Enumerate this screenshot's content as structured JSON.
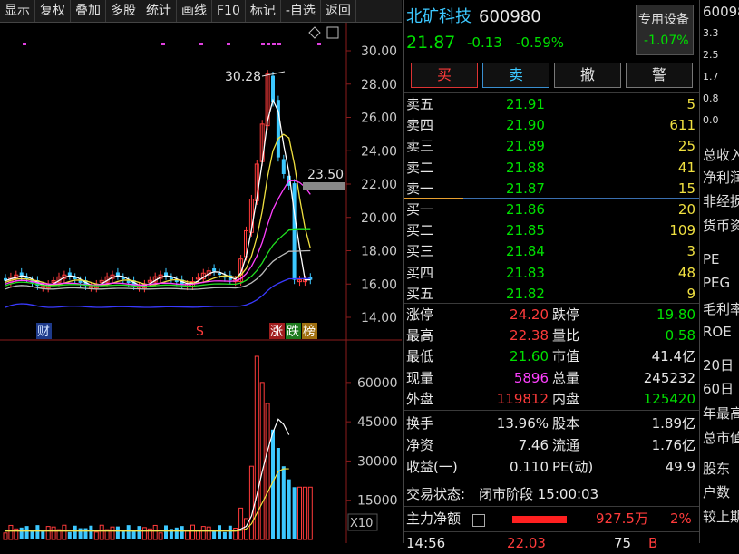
{
  "toolbar": [
    "显示",
    "复权",
    "叠加",
    "多股",
    "统计",
    "画线",
    "F10",
    "标记",
    "-自选",
    "返回"
  ],
  "chart": {
    "price_axis": [
      "30.00",
      "28.00",
      "26.00",
      "24.00",
      "22.00",
      "20.00",
      "18.00",
      "16.00",
      "14.00"
    ],
    "high_label": "30.28",
    "current_label": "23.50",
    "markers": [
      "财",
      "S",
      "涨",
      "跌",
      "榜"
    ],
    "volume_axis": [
      "60000",
      "45000",
      "30000",
      "15000"
    ],
    "zoom_label": "X10"
  },
  "stock": {
    "name": "北矿科技",
    "code": "600980",
    "price": "21.87",
    "change": "-0.13",
    "change_pct": "-0.59%",
    "sector": "专用设备",
    "sector_pct": "-1.07%"
  },
  "buttons": {
    "buy": "买",
    "sell": "卖",
    "cancel": "撤",
    "alert": "警"
  },
  "asks": [
    {
      "label": "卖五",
      "price": "21.91",
      "vol": "5"
    },
    {
      "label": "卖四",
      "price": "21.90",
      "vol": "611"
    },
    {
      "label": "卖三",
      "price": "21.89",
      "vol": "25"
    },
    {
      "label": "卖二",
      "price": "21.88",
      "vol": "41"
    },
    {
      "label": "卖一",
      "price": "21.87",
      "vol": "15"
    }
  ],
  "bids": [
    {
      "label": "买一",
      "price": "21.86",
      "vol": "20"
    },
    {
      "label": "买二",
      "price": "21.85",
      "vol": "109"
    },
    {
      "label": "买三",
      "price": "21.84",
      "vol": "3"
    },
    {
      "label": "买四",
      "price": "21.83",
      "vol": "48"
    },
    {
      "label": "买五",
      "price": "21.82",
      "vol": "9"
    }
  ],
  "stats": [
    {
      "l1": "涨停",
      "v1": "24.20",
      "c1": "red",
      "l2": "跌停",
      "v2": "19.80",
      "c2": "green"
    },
    {
      "l1": "最高",
      "v1": "22.38",
      "c1": "red",
      "l2": "量比",
      "v2": "0.58",
      "c2": "green"
    },
    {
      "l1": "最低",
      "v1": "21.60",
      "c1": "green",
      "l2": "市值",
      "v2": "41.4亿",
      "c2": "white"
    },
    {
      "l1": "现量",
      "v1": "5896",
      "c1": "magenta",
      "l2": "总量",
      "v2": "245232",
      "c2": "white"
    },
    {
      "l1": "外盘",
      "v1": "119812",
      "c1": "red",
      "l2": "内盘",
      "v2": "125420",
      "c2": "green"
    }
  ],
  "stats2": [
    {
      "l1": "换手",
      "v1": "13.96%",
      "l2": "股本",
      "v2": "1.89亿"
    },
    {
      "l1": "净资",
      "v1": "7.46",
      "l2": "流通",
      "v2": "1.76亿"
    },
    {
      "l1": "收益(一)",
      "v1": "0.110",
      "l2": "PE(动)",
      "v2": "49.9"
    }
  ],
  "status": {
    "label": "交易状态:",
    "value": "闭市阶段 15:00:03"
  },
  "netflow": {
    "label": "主力净额",
    "amount": "927.5万",
    "pct": "2%"
  },
  "tick": {
    "time": "14:56",
    "price": "22.03",
    "vol": "75",
    "side": "B"
  },
  "edge": {
    "code": "60098",
    "nums": [
      "3.3",
      "2.5",
      "1.7",
      "0.8",
      "0.0"
    ],
    "labels": [
      "总收入",
      "净利润",
      "非经损",
      "货币资",
      "PE",
      "PEG",
      "毛利率",
      "ROE",
      "20日",
      "60日",
      "年最高",
      "总市值",
      "股东",
      "户数",
      "较上期"
    ]
  }
}
